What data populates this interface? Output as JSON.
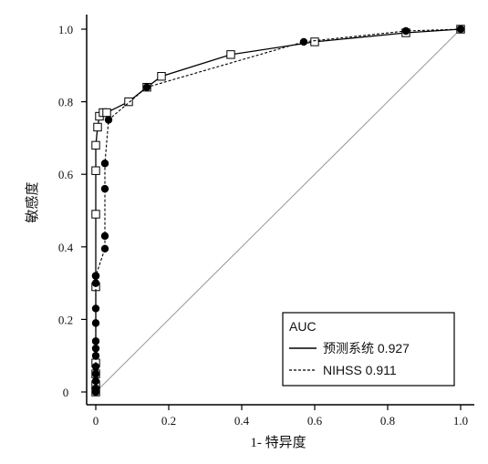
{
  "chart_data": {
    "type": "line",
    "xlabel": "1- 特异度",
    "ylabel": "敏感度",
    "xlim": [
      0,
      1
    ],
    "ylim": [
      0,
      1
    ],
    "x_ticks": [
      "0",
      "0.2",
      "0.4",
      "0.6",
      "0.8",
      "1.0"
    ],
    "y_ticks": [
      "0",
      "0.2",
      "0.4",
      "0.6",
      "0.8",
      "1.0"
    ],
    "grid": false,
    "legend": {
      "title": "AUC",
      "placement": "bottom-right",
      "entries": [
        "预测系统 0.927",
        "NIHSS 0.911"
      ]
    },
    "reference_line": {
      "x": [
        0,
        1
      ],
      "y": [
        0,
        1
      ],
      "color": "#999999"
    },
    "series": [
      {
        "legend_index": 0,
        "line_style": "solid",
        "marker": "open-square",
        "x": [
          0,
          0,
          0,
          0,
          0,
          0,
          0,
          0.0,
          0.005,
          0.01,
          0.02,
          0.03,
          0.09,
          0.14,
          0.18,
          0.37,
          0.6,
          0.85,
          1.0
        ],
        "y": [
          0,
          0.02,
          0.05,
          0.08,
          0.29,
          0.49,
          0.61,
          0.68,
          0.73,
          0.76,
          0.77,
          0.77,
          0.8,
          0.84,
          0.87,
          0.93,
          0.965,
          0.99,
          1.0
        ]
      },
      {
        "legend_index": 1,
        "line_style": "dashed",
        "marker": "filled-circle",
        "x": [
          0,
          0,
          0,
          0,
          0,
          0,
          0,
          0,
          0,
          0,
          0,
          0,
          0.0,
          0.0,
          0.025,
          0.025,
          0.025,
          0.025,
          0.035,
          0.14,
          0.57,
          0.85,
          1.0
        ],
        "y": [
          0,
          0.01,
          0.03,
          0.05,
          0.07,
          0.1,
          0.12,
          0.14,
          0.19,
          0.23,
          0.3,
          0.32,
          0.32,
          0.32,
          0.395,
          0.43,
          0.56,
          0.63,
          0.75,
          0.84,
          0.965,
          0.995,
          1.0
        ]
      }
    ]
  }
}
